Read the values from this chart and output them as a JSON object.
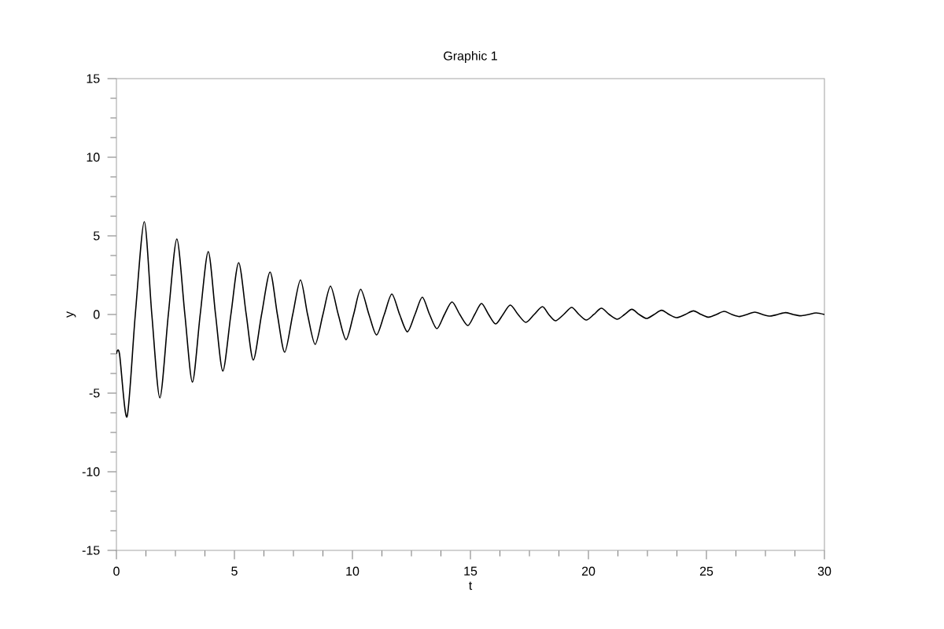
{
  "chart_data": {
    "type": "line",
    "title": "Graphic 1",
    "xlabel": "t",
    "ylabel": "y",
    "x": [
      0,
      0.13,
      0.45,
      0.8,
      1.18,
      1.5,
      1.84,
      2.2,
      2.56,
      2.9,
      3.22,
      3.55,
      3.89,
      4.2,
      4.51,
      4.85,
      5.18,
      5.5,
      5.8,
      6.15,
      6.51,
      6.82,
      7.13,
      7.47,
      7.8,
      8.1,
      8.42,
      8.75,
      9.07,
      9.4,
      9.73,
      10.05,
      10.35,
      10.7,
      11.02,
      11.35,
      11.67,
      12.0,
      12.33,
      12.65,
      12.96,
      13.27,
      13.58,
      13.9,
      14.22,
      14.55,
      14.89,
      15.18,
      15.47,
      15.77,
      16.07,
      16.38,
      16.69,
      17.02,
      17.35,
      17.7,
      18.05,
      18.32,
      18.6,
      18.95,
      19.29,
      19.6,
      19.91,
      20.23,
      20.55,
      20.88,
      21.22,
      21.53,
      21.84,
      22.15,
      22.47,
      22.78,
      23.1,
      23.42,
      23.73,
      24.1,
      24.45,
      24.78,
      25.1,
      25.42,
      25.75,
      26.08,
      26.4,
      26.72,
      27.05,
      27.38,
      27.7,
      28.02,
      28.35,
      28.68,
      29.0,
      29.32,
      29.65,
      30
    ],
    "values": [
      -2.5,
      -2.5,
      -6.5,
      0,
      5.9,
      0,
      -5.3,
      0,
      4.8,
      0,
      -4.3,
      0,
      4.0,
      0,
      -3.6,
      0,
      3.3,
      0,
      -2.9,
      0,
      2.7,
      0,
      -2.4,
      0,
      2.2,
      0,
      -1.9,
      0,
      1.8,
      0,
      -1.6,
      0,
      1.6,
      0,
      -1.3,
      0,
      1.3,
      0,
      -1.1,
      0,
      1.1,
      0,
      -0.9,
      0,
      0.8,
      0,
      -0.7,
      0,
      0.7,
      0,
      -0.6,
      0,
      0.6,
      0,
      -0.5,
      0,
      0.5,
      0,
      -0.4,
      0,
      0.45,
      0,
      -0.35,
      0,
      0.4,
      0,
      -0.3,
      0,
      0.33,
      0,
      -0.25,
      0,
      0.27,
      0,
      -0.2,
      0,
      0.23,
      0,
      -0.17,
      0,
      0.2,
      0,
      -0.13,
      0,
      0.15,
      0,
      -0.1,
      0,
      0.12,
      0,
      -0.08,
      0,
      0.1,
      0
    ],
    "color": "#000000",
    "xlim": [
      0,
      30
    ],
    "ylim": [
      -15,
      15
    ],
    "xticks": [
      0,
      5,
      10,
      15,
      20,
      25,
      30
    ],
    "yticks": [
      -15,
      -10,
      -5,
      0,
      5,
      10,
      15
    ]
  }
}
